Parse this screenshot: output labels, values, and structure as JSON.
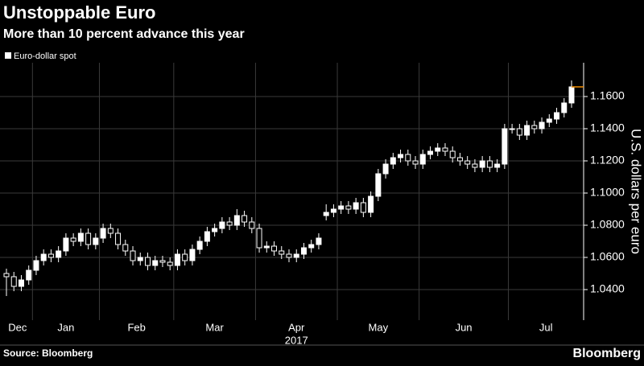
{
  "chart_data": {
    "type": "candlestick",
    "title": "Unstoppable Euro",
    "subtitle": "More than 10 percent advance this year",
    "series_name": "Euro-dollar spot",
    "up_color": "#ffffff",
    "down_color": "#000000",
    "last_price_color": "#f08c00",
    "y_label": "U.S. dollars per euro",
    "x_year_label": "2017",
    "source": "Source: Bloomberg",
    "brand": "Bloomberg",
    "grid": true,
    "ylim": [
      1.021,
      1.181
    ],
    "yticks": [
      {
        "value": 1.04,
        "label": "1.0400"
      },
      {
        "value": 1.06,
        "label": "1.0600"
      },
      {
        "value": 1.08,
        "label": "1.0800"
      },
      {
        "value": 1.1,
        "label": "1.1000"
      },
      {
        "value": 1.12,
        "label": "1.1200"
      },
      {
        "value": 1.14,
        "label": "1.1400"
      },
      {
        "value": 1.16,
        "label": "1.1600"
      }
    ],
    "categories": [
      "Dec",
      null,
      null,
      null,
      "Jan",
      null,
      null,
      null,
      null,
      null,
      null,
      null,
      null,
      "Feb",
      null,
      null,
      null,
      null,
      null,
      null,
      null,
      null,
      null,
      "Mar",
      null,
      null,
      null,
      null,
      null,
      null,
      null,
      null,
      null,
      null,
      "Apr",
      null,
      null,
      null,
      null,
      null,
      null,
      null,
      null,
      null,
      null,
      "May",
      null,
      null,
      null,
      null,
      null,
      null,
      null,
      null,
      null,
      null,
      "Jun",
      null,
      null,
      null,
      null,
      null,
      null,
      null,
      null,
      null,
      null,
      null,
      "Jul",
      null,
      null,
      null,
      null,
      null,
      null,
      null,
      null
    ],
    "open": [
      1.05,
      1.048,
      1.042,
      1.046,
      1.052,
      1.058,
      1.062,
      1.06,
      1.064,
      1.072,
      1.07,
      1.075,
      1.068,
      1.072,
      1.078,
      1.075,
      1.068,
      1.064,
      1.058,
      1.06,
      1.055,
      1.058,
      1.057,
      1.055,
      1.062,
      1.058,
      1.065,
      1.07,
      1.076,
      1.078,
      1.082,
      1.08,
      1.086,
      1.082,
      1.078,
      1.066,
      1.067,
      1.064,
      1.062,
      1.06,
      1.062,
      1.066,
      1.068,
      1.086,
      1.088,
      1.09,
      1.092,
      1.09,
      1.094,
      1.088,
      1.098,
      1.112,
      1.118,
      1.122,
      1.124,
      1.12,
      1.118,
      1.124,
      1.126,
      1.128,
      1.126,
      1.122,
      1.12,
      1.118,
      1.116,
      1.12,
      1.116,
      1.118,
      1.14,
      1.14,
      1.136,
      1.142,
      1.14,
      1.144,
      1.146,
      1.15,
      1.156
    ],
    "high": [
      1.053,
      1.051,
      1.049,
      1.055,
      1.061,
      1.065,
      1.065,
      1.067,
      1.075,
      1.075,
      1.078,
      1.078,
      1.075,
      1.081,
      1.081,
      1.078,
      1.071,
      1.067,
      1.063,
      1.063,
      1.061,
      1.061,
      1.06,
      1.065,
      1.065,
      1.068,
      1.073,
      1.079,
      1.081,
      1.085,
      1.085,
      1.09,
      1.089,
      1.085,
      1.081,
      1.07,
      1.07,
      1.067,
      1.065,
      1.065,
      1.069,
      1.071,
      1.075,
      1.093,
      1.093,
      1.095,
      1.095,
      1.097,
      1.097,
      1.101,
      1.115,
      1.121,
      1.125,
      1.127,
      1.127,
      1.123,
      1.127,
      1.129,
      1.131,
      1.131,
      1.129,
      1.125,
      1.123,
      1.121,
      1.123,
      1.123,
      1.121,
      1.143,
      1.143,
      1.143,
      1.145,
      1.145,
      1.147,
      1.149,
      1.153,
      1.159,
      1.17
    ],
    "low": [
      1.036,
      1.039,
      1.039,
      1.043,
      1.049,
      1.055,
      1.057,
      1.057,
      1.061,
      1.067,
      1.067,
      1.065,
      1.065,
      1.069,
      1.072,
      1.065,
      1.061,
      1.055,
      1.055,
      1.052,
      1.052,
      1.054,
      1.052,
      1.052,
      1.055,
      1.055,
      1.062,
      1.067,
      1.073,
      1.075,
      1.077,
      1.077,
      1.079,
      1.075,
      1.063,
      1.063,
      1.061,
      1.059,
      1.057,
      1.057,
      1.059,
      1.063,
      1.065,
      1.083,
      1.085,
      1.087,
      1.087,
      1.087,
      1.085,
      1.085,
      1.095,
      1.109,
      1.115,
      1.119,
      1.117,
      1.115,
      1.115,
      1.121,
      1.123,
      1.123,
      1.119,
      1.117,
      1.115,
      1.113,
      1.113,
      1.113,
      1.113,
      1.115,
      1.137,
      1.133,
      1.133,
      1.137,
      1.137,
      1.141,
      1.143,
      1.147,
      1.153
    ],
    "close": [
      1.048,
      1.042,
      1.046,
      1.052,
      1.058,
      1.062,
      1.06,
      1.064,
      1.072,
      1.07,
      1.075,
      1.068,
      1.072,
      1.078,
      1.075,
      1.068,
      1.064,
      1.058,
      1.06,
      1.055,
      1.058,
      1.057,
      1.055,
      1.062,
      1.058,
      1.065,
      1.07,
      1.076,
      1.078,
      1.082,
      1.08,
      1.086,
      1.082,
      1.078,
      1.066,
      1.067,
      1.064,
      1.062,
      1.06,
      1.062,
      1.066,
      1.068,
      1.072,
      1.088,
      1.09,
      1.092,
      1.09,
      1.094,
      1.088,
      1.098,
      1.112,
      1.118,
      1.122,
      1.124,
      1.12,
      1.118,
      1.124,
      1.126,
      1.128,
      1.126,
      1.122,
      1.12,
      1.118,
      1.116,
      1.12,
      1.116,
      1.118,
      1.14,
      1.14,
      1.136,
      1.142,
      1.14,
      1.144,
      1.146,
      1.15,
      1.156,
      1.166
    ]
  }
}
